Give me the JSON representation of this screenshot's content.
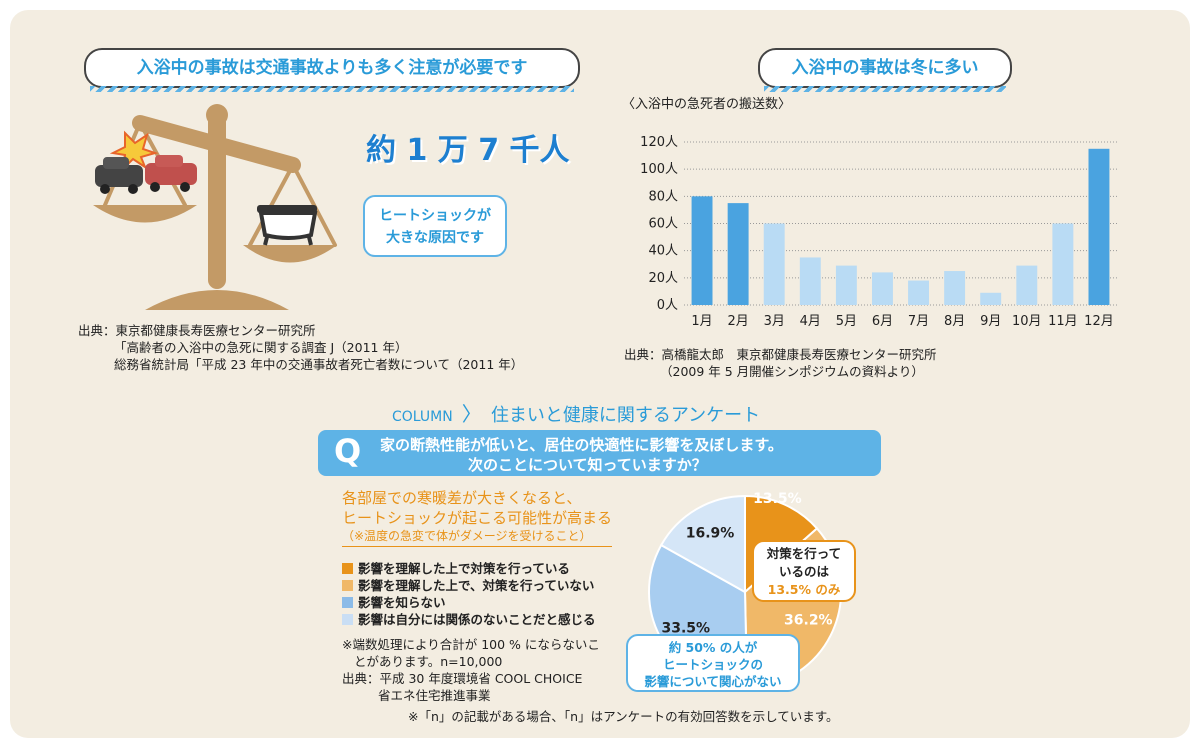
{
  "left_section": {
    "title": "入浴中の事故は交通事故よりも多く注意が必要です",
    "headline": "約 1 万 7 千人",
    "bubble_lines": [
      "ヒートショックが",
      "大きな原因です"
    ],
    "source_lines": [
      "出典：東京都健康長寿医療センター研究所",
      "「高齢者の入浴中の急死に関する調査 J（2011 年）",
      "総務省統計局「平成 23 年中の交通事故者死亡者数について（2011 年）"
    ]
  },
  "right_section": {
    "title": "入浴中の事故は冬に多い",
    "source_lines": [
      "出典：高橋龍太郎　東京都健康長寿医療センター研究所",
      "（2009 年 5 月開催シンポジウムの資料より）"
    ]
  },
  "column": {
    "label": "COLUMN",
    "title": "住まいと健康に関するアンケート",
    "q_mark": "Q",
    "q_lines": [
      "家の断熱性能が低いと、居住の快適性に影響を及ぼします。",
      "次のことについて知っていますか？"
    ],
    "statement_lines": [
      "各部屋での寒暖差が大きくなると、",
      "ヒートショックが起こる可能性が高まる"
    ],
    "statement_note": "（※温度の急変で体がダメージを受けること）",
    "notes": [
      "※端数処理により合計が 100 % にならないこ",
      "とがあります。n=10,000",
      "出典：平成 30 年度環境省 COOL CHOICE",
      "省エネ住宅推進事業"
    ],
    "footer": "※「n」の記載がある場合、「n」はアンケートの有効回答数を示しています。",
    "pie_callout_lines": [
      "対策を行って",
      "いるのは",
      "13.5% のみ"
    ],
    "pie_callout2_lines": [
      "約 50% の人が",
      "ヒートショックの",
      "影響について関心がない"
    ]
  },
  "colors": {
    "bar_strong": "#4aa3e0",
    "bar_light": "#b9dbf4",
    "pie_orange": "#e8931a",
    "pie_light_orange": "#f0b868",
    "pie_blue": "#a8cdf0",
    "pie_pale": "#d5e6f7",
    "accent_blue": "#2a9bd8"
  },
  "chart_data": [
    {
      "type": "bar",
      "title": "〈入浴中の急死者の搬送数〉",
      "categories": [
        "1月",
        "2月",
        "3月",
        "4月",
        "5月",
        "6月",
        "7月",
        "8月",
        "9月",
        "10月",
        "11月",
        "12月"
      ],
      "values": [
        80,
        75,
        60,
        35,
        29,
        24,
        18,
        25,
        9,
        29,
        60,
        115
      ],
      "highlight": [
        true,
        true,
        false,
        false,
        false,
        false,
        false,
        false,
        false,
        false,
        false,
        true
      ],
      "ylim": [
        0,
        120
      ],
      "yticks": [
        "0人",
        "20人",
        "40人",
        "60人",
        "80人",
        "100人",
        "120人"
      ],
      "grid": true
    },
    {
      "type": "pie",
      "labels": [
        "影響を理解した上で対策を行っている",
        "影響を理解した上で、対策を行っていない",
        "影響を知らない",
        "影響は自分には関係のないことだと感じる"
      ],
      "values": [
        13.5,
        36.2,
        33.5,
        16.9
      ],
      "value_labels": [
        "13.5%",
        "36.2%",
        "33.5%",
        "16.9%"
      ],
      "colors": [
        "#e8931a",
        "#f0b868",
        "#a8cdf0",
        "#d5e6f7"
      ]
    }
  ]
}
